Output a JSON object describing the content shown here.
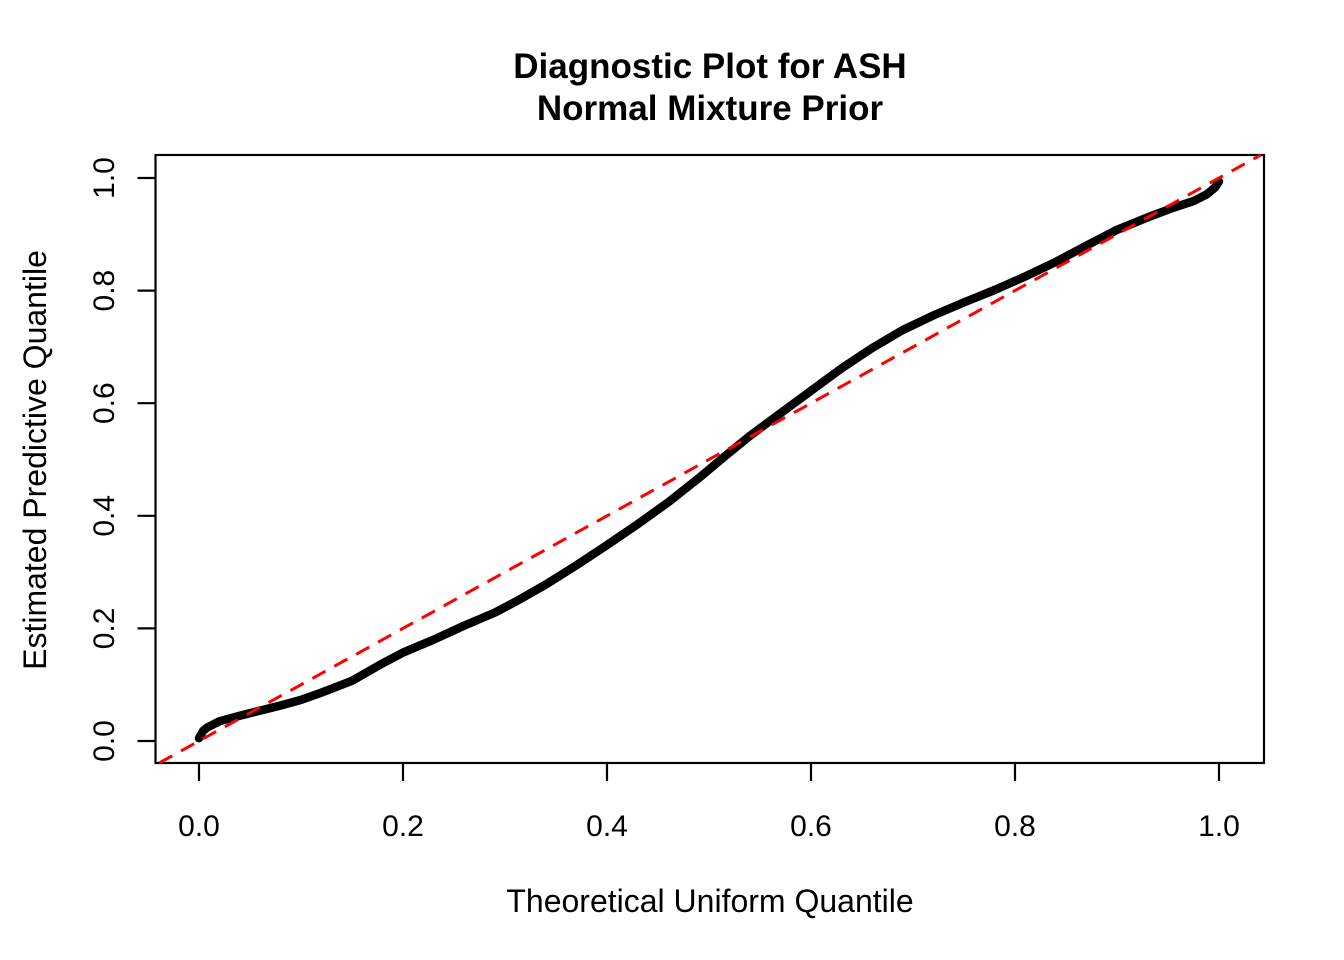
{
  "chart_data": {
    "type": "line",
    "title_lines": [
      "Diagnostic Plot for ASH",
      "Normal Mixture Prior"
    ],
    "xlabel": "Theoretical Uniform Quantile",
    "ylabel": "Estimated Predictive Quantile",
    "xlim": [
      0.0,
      1.0
    ],
    "ylim": [
      0.0,
      1.0
    ],
    "xticks": [
      0.0,
      0.2,
      0.4,
      0.6,
      0.8,
      1.0
    ],
    "yticks": [
      0.0,
      0.2,
      0.4,
      0.6,
      0.8,
      1.0
    ],
    "xtick_labels": [
      "0.0",
      "0.2",
      "0.4",
      "0.6",
      "0.8",
      "1.0"
    ],
    "ytick_labels": [
      "0.0",
      "0.2",
      "0.4",
      "0.6",
      "0.8",
      "1.0"
    ],
    "grid": false,
    "legend": "none",
    "frame": "box",
    "colors": {
      "curve": "#000000",
      "reference_line": "#FF0000",
      "background": "#FFFFFF",
      "text": "#000000"
    },
    "series": [
      {
        "name": "estimated-predictive-quantile-curve",
        "type": "line",
        "color": "#000000",
        "linestyle": "solid",
        "points": [
          [
            0.0,
            0.005
          ],
          [
            0.004,
            0.018
          ],
          [
            0.008,
            0.024
          ],
          [
            0.02,
            0.035
          ],
          [
            0.04,
            0.045
          ],
          [
            0.06,
            0.054
          ],
          [
            0.08,
            0.063
          ],
          [
            0.1,
            0.073
          ],
          [
            0.12,
            0.086
          ],
          [
            0.15,
            0.107
          ],
          [
            0.18,
            0.138
          ],
          [
            0.2,
            0.157
          ],
          [
            0.23,
            0.18
          ],
          [
            0.26,
            0.205
          ],
          [
            0.29,
            0.228
          ],
          [
            0.31,
            0.247
          ],
          [
            0.34,
            0.278
          ],
          [
            0.37,
            0.312
          ],
          [
            0.4,
            0.348
          ],
          [
            0.43,
            0.385
          ],
          [
            0.46,
            0.424
          ],
          [
            0.49,
            0.467
          ],
          [
            0.515,
            0.505
          ],
          [
            0.54,
            0.542
          ],
          [
            0.57,
            0.582
          ],
          [
            0.6,
            0.622
          ],
          [
            0.63,
            0.662
          ],
          [
            0.66,
            0.698
          ],
          [
            0.69,
            0.73
          ],
          [
            0.72,
            0.756
          ],
          [
            0.75,
            0.779
          ],
          [
            0.78,
            0.801
          ],
          [
            0.81,
            0.825
          ],
          [
            0.84,
            0.851
          ],
          [
            0.87,
            0.88
          ],
          [
            0.9,
            0.908
          ],
          [
            0.93,
            0.93
          ],
          [
            0.955,
            0.947
          ],
          [
            0.975,
            0.959
          ],
          [
            0.988,
            0.971
          ],
          [
            0.996,
            0.983
          ],
          [
            1.0,
            0.994
          ]
        ]
      },
      {
        "name": "identity-reference-line",
        "type": "abline",
        "color": "#FF0000",
        "linestyle": "dashed",
        "slope": 1,
        "intercept": 0
      }
    ]
  }
}
